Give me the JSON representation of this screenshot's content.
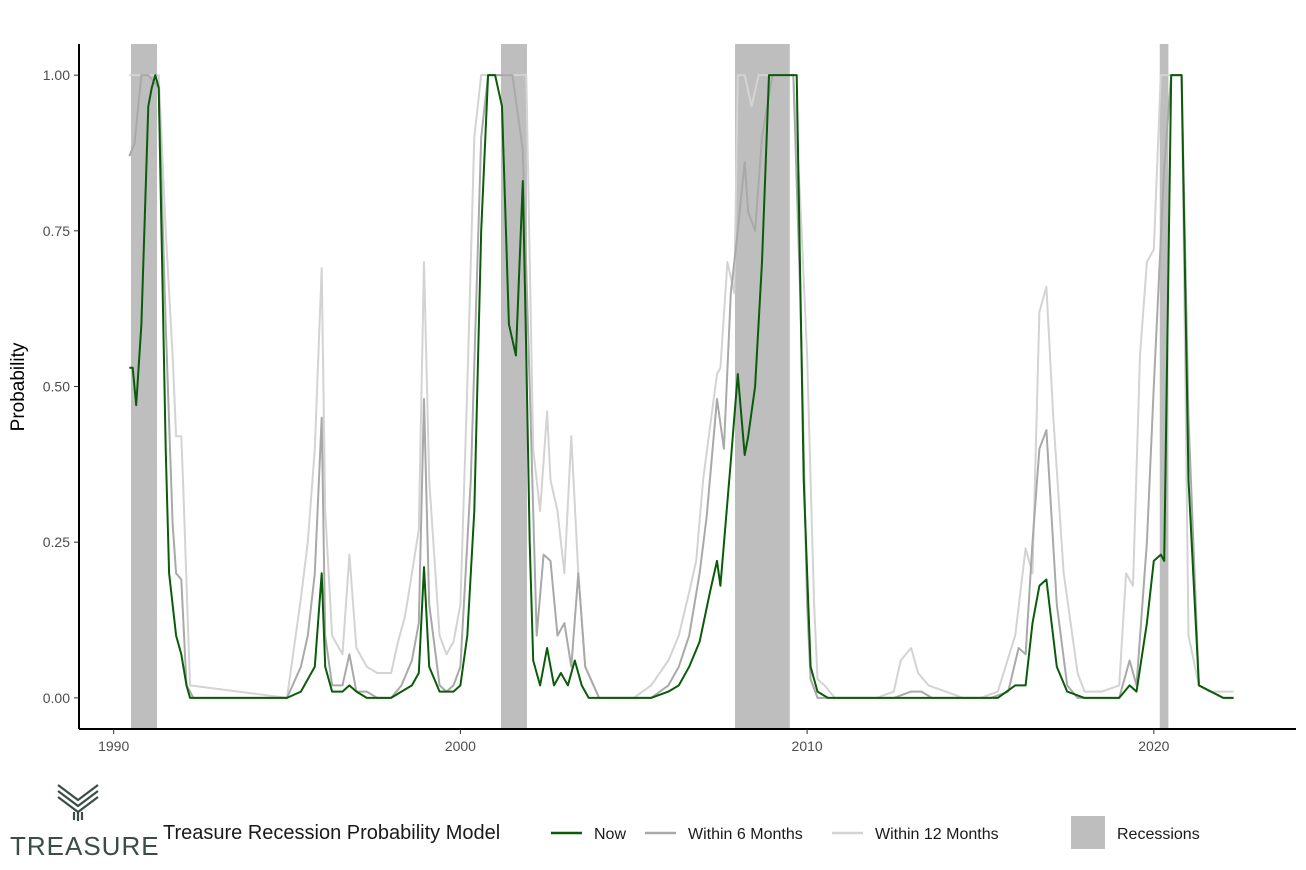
{
  "brand": {
    "name": "TREASURE",
    "color": "#3b4d47"
  },
  "chart_data": {
    "type": "line",
    "title": "",
    "xlabel": "",
    "ylabel": "Probability",
    "xlim": [
      1989.0,
      2024.1
    ],
    "ylim": [
      -0.05,
      1.05
    ],
    "x_ticks": [
      1990,
      2000,
      2010,
      2020
    ],
    "x_tick_labels": [
      "1990",
      "2000",
      "2010",
      "2020"
    ],
    "y_ticks": [
      0,
      0.25,
      0.5,
      0.75,
      1.0
    ],
    "y_tick_labels": [
      "0.00",
      "0.25",
      "0.50",
      "0.75",
      "1.00"
    ],
    "grid": false,
    "legend_position": "bottom",
    "legend_title": "Treasure Recession Probability Model",
    "recessions": {
      "name": "Recessions",
      "color": "#bebebe",
      "periods": [
        [
          1990.5,
          1991.25
        ],
        [
          2001.17,
          2001.92
        ],
        [
          2007.92,
          2009.5
        ],
        [
          2020.17,
          2020.42
        ]
      ]
    },
    "series": [
      {
        "name": "Within 12 Months",
        "color": "#d3d3d3",
        "x": [
          1990.45,
          1990.7,
          1991.0,
          1991.3,
          1991.5,
          1991.7,
          1991.8,
          1991.95,
          1992.0,
          1992.2,
          1995.0,
          1995.4,
          1995.6,
          1995.8,
          1996.0,
          1996.1,
          1996.3,
          1996.6,
          1996.8,
          1997.0,
          1997.3,
          1997.6,
          1998.0,
          1998.2,
          1998.4,
          1998.6,
          1998.8,
          1998.95,
          1999.1,
          1999.4,
          1999.6,
          1999.8,
          2000.0,
          2000.2,
          2000.4,
          2000.6,
          2000.8,
          2001.0,
          2001.5,
          2001.9,
          2002.1,
          2002.3,
          2002.5,
          2002.6,
          2002.8,
          2003.0,
          2003.2,
          2003.4,
          2003.6,
          2004.0,
          2005.0,
          2005.5,
          2006.0,
          2006.3,
          2006.6,
          2006.8,
          2007.0,
          2007.4,
          2007.5,
          2007.7,
          2007.9,
          2008.0,
          2008.2,
          2008.4,
          2008.6,
          2008.8,
          2009.0,
          2009.5,
          2009.6,
          2009.8,
          2010.0,
          2010.2,
          2010.3,
          2010.5,
          2010.8,
          2011.0,
          2012.0,
          2012.5,
          2012.7,
          2013.0,
          2013.2,
          2013.5,
          2014.0,
          2014.5,
          2015.0,
          2015.5,
          2016.0,
          2016.3,
          2016.5,
          2016.7,
          2016.9,
          2017.1,
          2017.4,
          2017.8,
          2018.0,
          2018.5,
          2019.0,
          2019.2,
          2019.4,
          2019.6,
          2019.8,
          2020.0,
          2020.2,
          2020.5,
          2020.8,
          2021.0,
          2021.3,
          2021.6,
          2022.0,
          2022.3
        ],
        "y": [
          1.0,
          1.0,
          1.0,
          1.0,
          0.75,
          0.55,
          0.42,
          0.42,
          0.35,
          0.02,
          0.0,
          0.16,
          0.25,
          0.4,
          0.69,
          0.3,
          0.1,
          0.07,
          0.23,
          0.08,
          0.05,
          0.04,
          0.04,
          0.09,
          0.13,
          0.2,
          0.27,
          0.7,
          0.35,
          0.1,
          0.07,
          0.09,
          0.15,
          0.5,
          0.9,
          1.0,
          1.0,
          1.0,
          1.0,
          1.0,
          0.4,
          0.3,
          0.46,
          0.35,
          0.3,
          0.2,
          0.42,
          0.2,
          0.05,
          0.0,
          0.0,
          0.02,
          0.06,
          0.1,
          0.17,
          0.22,
          0.35,
          0.52,
          0.53,
          0.7,
          0.65,
          1.0,
          1.0,
          0.95,
          1.0,
          1.0,
          1.0,
          1.0,
          1.0,
          0.8,
          0.55,
          0.15,
          0.03,
          0.02,
          0.0,
          0.0,
          0.0,
          0.01,
          0.06,
          0.08,
          0.04,
          0.02,
          0.01,
          0.0,
          0.0,
          0.01,
          0.1,
          0.24,
          0.2,
          0.62,
          0.66,
          0.45,
          0.2,
          0.04,
          0.01,
          0.01,
          0.02,
          0.2,
          0.18,
          0.55,
          0.7,
          0.72,
          1.0,
          1.0,
          1.0,
          0.1,
          0.02,
          0.01,
          0.01,
          0.01
        ]
      },
      {
        "name": "Within 6 Months",
        "color": "#a9a9a9",
        "x": [
          1990.45,
          1990.6,
          1990.8,
          1991.0,
          1991.3,
          1991.5,
          1991.7,
          1991.8,
          1991.95,
          1992.1,
          1992.3,
          1995.0,
          1995.4,
          1995.6,
          1995.8,
          1996.0,
          1996.1,
          1996.3,
          1996.6,
          1996.8,
          1997.0,
          1997.3,
          1997.6,
          1998.0,
          1998.3,
          1998.6,
          1998.8,
          1998.95,
          1999.1,
          1999.4,
          1999.6,
          1999.8,
          2000.0,
          2000.3,
          2000.6,
          2000.8,
          2001.0,
          2001.5,
          2001.8,
          2002.0,
          2002.2,
          2002.4,
          2002.6,
          2002.8,
          2003.0,
          2003.2,
          2003.4,
          2003.6,
          2004.0,
          2005.5,
          2006.0,
          2006.3,
          2006.6,
          2006.9,
          2007.1,
          2007.4,
          2007.6,
          2007.8,
          2008.0,
          2008.2,
          2008.3,
          2008.5,
          2008.7,
          2009.0,
          2009.5,
          2009.6,
          2009.8,
          2010.0,
          2010.1,
          2010.3,
          2010.6,
          2011.0,
          2012.5,
          2013.0,
          2013.3,
          2013.6,
          2014.5,
          2015.3,
          2015.8,
          2016.1,
          2016.3,
          2016.5,
          2016.7,
          2016.9,
          2017.2,
          2017.5,
          2017.8,
          2018.5,
          2019.0,
          2019.3,
          2019.5,
          2019.8,
          2020.0,
          2020.3,
          2020.5,
          2020.8,
          2021.0,
          2021.3,
          2022.0,
          2022.3
        ],
        "y": [
          0.87,
          0.89,
          1.0,
          1.0,
          0.98,
          0.6,
          0.28,
          0.2,
          0.19,
          0.02,
          0.0,
          0.0,
          0.05,
          0.1,
          0.2,
          0.45,
          0.1,
          0.02,
          0.02,
          0.07,
          0.01,
          0.01,
          0.0,
          0.0,
          0.02,
          0.06,
          0.12,
          0.48,
          0.15,
          0.02,
          0.01,
          0.02,
          0.05,
          0.35,
          0.9,
          1.0,
          1.0,
          1.0,
          0.88,
          0.5,
          0.1,
          0.23,
          0.22,
          0.1,
          0.12,
          0.05,
          0.2,
          0.05,
          0.0,
          0.0,
          0.02,
          0.05,
          0.1,
          0.2,
          0.29,
          0.48,
          0.4,
          0.65,
          0.75,
          0.86,
          0.78,
          0.75,
          0.9,
          1.0,
          1.0,
          1.0,
          0.65,
          0.15,
          0.03,
          0.0,
          0.0,
          0.0,
          0.0,
          0.01,
          0.01,
          0.0,
          0.0,
          0.0,
          0.01,
          0.08,
          0.07,
          0.25,
          0.4,
          0.43,
          0.15,
          0.02,
          0.0,
          0.0,
          0.0,
          0.06,
          0.02,
          0.25,
          0.5,
          0.85,
          1.0,
          1.0,
          0.45,
          0.02,
          0.0,
          0.0
        ]
      },
      {
        "name": "Now",
        "color": "#0a5c0a",
        "x": [
          1990.45,
          1990.55,
          1990.65,
          1990.8,
          1991.0,
          1991.1,
          1991.2,
          1991.3,
          1991.5,
          1991.6,
          1991.8,
          1991.95,
          1992.1,
          1992.2,
          1995.0,
          1995.4,
          1995.6,
          1995.8,
          1996.0,
          1996.1,
          1996.3,
          1996.6,
          1996.8,
          1997.0,
          1997.3,
          1997.6,
          1998.0,
          1998.3,
          1998.6,
          1998.8,
          1998.95,
          1999.1,
          1999.4,
          1999.6,
          1999.8,
          2000.0,
          2000.2,
          2000.4,
          2000.6,
          2000.8,
          2001.0,
          2001.2,
          2001.4,
          2001.6,
          2001.8,
          2001.9,
          2002.0,
          2002.1,
          2002.3,
          2002.5,
          2002.7,
          2002.9,
          2003.1,
          2003.3,
          2003.5,
          2003.7,
          2004.0,
          2005.5,
          2006.0,
          2006.3,
          2006.6,
          2006.9,
          2007.2,
          2007.4,
          2007.5,
          2007.8,
          2008.0,
          2008.2,
          2008.3,
          2008.5,
          2008.7,
          2008.9,
          2009.1,
          2009.3,
          2009.5,
          2009.7,
          2009.9,
          2010.1,
          2010.3,
          2010.6,
          2011.0,
          2013.0,
          2013.5,
          2014.5,
          2015.5,
          2016.0,
          2016.3,
          2016.5,
          2016.7,
          2016.9,
          2017.2,
          2017.5,
          2018.0,
          2019.0,
          2019.3,
          2019.5,
          2019.8,
          2020.0,
          2020.2,
          2020.3,
          2020.5,
          2020.7,
          2020.8,
          2021.0,
          2021.3,
          2022.0,
          2022.3
        ],
        "y": [
          0.53,
          0.53,
          0.47,
          0.6,
          0.95,
          0.98,
          1.0,
          0.98,
          0.4,
          0.2,
          0.1,
          0.07,
          0.02,
          0.0,
          0.0,
          0.01,
          0.03,
          0.05,
          0.2,
          0.05,
          0.01,
          0.01,
          0.02,
          0.01,
          0.0,
          0.0,
          0.0,
          0.01,
          0.02,
          0.04,
          0.21,
          0.05,
          0.01,
          0.01,
          0.01,
          0.02,
          0.1,
          0.3,
          0.75,
          1.0,
          1.0,
          0.95,
          0.6,
          0.55,
          0.83,
          0.55,
          0.25,
          0.06,
          0.02,
          0.08,
          0.02,
          0.04,
          0.02,
          0.06,
          0.02,
          0.0,
          0.0,
          0.0,
          0.01,
          0.02,
          0.05,
          0.09,
          0.17,
          0.22,
          0.18,
          0.38,
          0.52,
          0.39,
          0.42,
          0.5,
          0.7,
          1.0,
          1.0,
          1.0,
          1.0,
          1.0,
          0.35,
          0.05,
          0.01,
          0.0,
          0.0,
          0.0,
          0.0,
          0.0,
          0.0,
          0.02,
          0.02,
          0.12,
          0.18,
          0.19,
          0.05,
          0.01,
          0.0,
          0.0,
          0.02,
          0.01,
          0.12,
          0.22,
          0.23,
          0.22,
          1.0,
          1.0,
          1.0,
          0.35,
          0.02,
          0.0,
          0.0
        ]
      }
    ]
  }
}
